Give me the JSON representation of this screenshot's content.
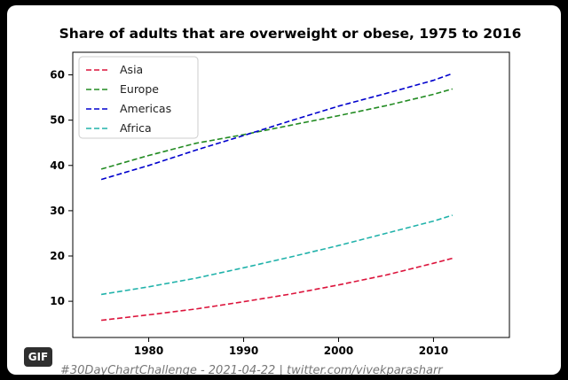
{
  "chart_data": {
    "type": "line",
    "title": "Share of adults that are overweight or obese, 1975 to 2016",
    "xlabel": "",
    "ylabel": "",
    "xlim": [
      1972,
      2018
    ],
    "ylim": [
      2,
      65
    ],
    "x_ticks": [
      1980,
      1990,
      2000,
      2010
    ],
    "y_ticks": [
      10,
      20,
      30,
      40,
      50,
      60
    ],
    "grid": false,
    "legend_position": "top-left",
    "line_style": "dashed",
    "x": [
      1975,
      1980,
      1985,
      1990,
      1995,
      2000,
      2005,
      2010,
      2012
    ],
    "series": [
      {
        "name": "Asia",
        "color": "#dc143c",
        "values": [
          5.8,
          7.0,
          8.3,
          9.9,
          11.6,
          13.6,
          15.8,
          18.4,
          19.5
        ]
      },
      {
        "name": "Europe",
        "color": "#228b22",
        "values": [
          39.2,
          42.2,
          44.9,
          46.8,
          48.9,
          51.0,
          53.2,
          55.7,
          56.9
        ]
      },
      {
        "name": "Americas",
        "color": "#0000cd",
        "values": [
          36.9,
          40.0,
          43.4,
          46.6,
          49.9,
          53.1,
          55.9,
          58.8,
          60.3
        ]
      },
      {
        "name": "Africa",
        "color": "#20b2aa",
        "values": [
          11.5,
          13.2,
          15.1,
          17.4,
          19.8,
          22.3,
          25.0,
          27.7,
          29.0
        ]
      }
    ]
  },
  "badge": {
    "label": "GIF"
  },
  "footer": {
    "credit": "#30DayChartChallenge - 2021-04-22 | twitter.com/vivekparasharr"
  }
}
